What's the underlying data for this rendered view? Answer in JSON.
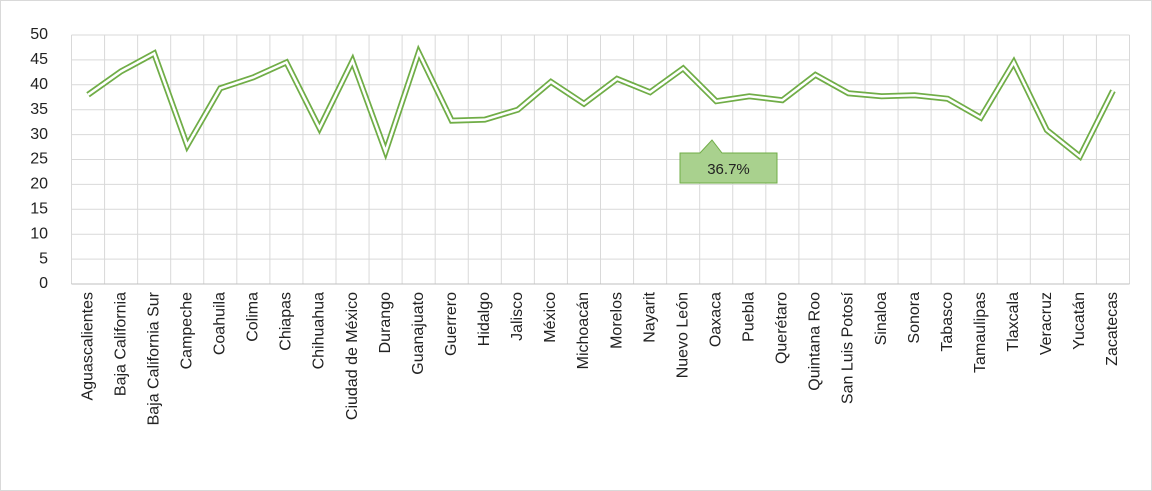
{
  "chart_data": {
    "type": "line",
    "categories": [
      "Aguascalientes",
      "Baja California",
      "Baja California Sur",
      "Campeche",
      "Coahuila",
      "Colima",
      "Chiapas",
      "Chihuahua",
      "Ciudad de México",
      "Durango",
      "Guanajuato",
      "Guerrero",
      "Hidalgo",
      "Jalisco",
      "México",
      "Michoacán",
      "Morelos",
      "Nayarit",
      "Nuevo León",
      "Oaxaca",
      "Puebla",
      "Querétaro",
      "Quintana Roo",
      "San Luis Potosí",
      "Sinaloa",
      "Sonora",
      "Tabasco",
      "Tamaulipas",
      "Tlaxcala",
      "Veracruz",
      "Yucatán",
      "Zacatecas"
    ],
    "values": [
      38,
      42.7,
      46.3,
      27.8,
      39.3,
      41.5,
      44.5,
      31.3,
      44.8,
      26.6,
      46.5,
      32.8,
      33,
      35,
      40.6,
      36.2,
      41.2,
      38.5,
      43.3,
      36.7,
      37.7,
      36.9,
      42,
      38.3,
      37.7,
      37.9,
      37.2,
      33.4,
      44.5,
      30.9,
      25.6,
      38.8
    ],
    "color": "#70ad47",
    "ylim": [
      0,
      50
    ],
    "yticks": [
      0,
      5,
      10,
      15,
      20,
      25,
      30,
      35,
      40,
      45,
      50
    ],
    "grid": true,
    "annotation": "36.7%"
  }
}
